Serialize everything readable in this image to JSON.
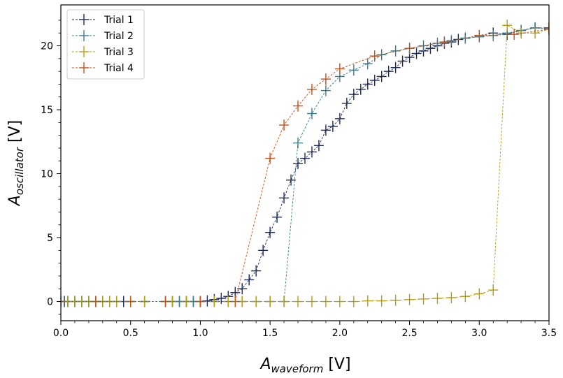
{
  "chart_data": {
    "type": "line",
    "title": "",
    "xlabel": {
      "main": "A",
      "sub": "waveform",
      "unit": " [V]"
    },
    "ylabel": {
      "main": "A",
      "sub": "oscillator",
      "unit": " [V]"
    },
    "xlim": [
      0.0,
      3.5
    ],
    "ylim": [
      -1.5,
      23.2
    ],
    "xticks": [
      0.0,
      0.5,
      1.0,
      1.5,
      2.0,
      2.5,
      3.0,
      3.5
    ],
    "xtick_labels": [
      "0.0",
      "0.5",
      "1.0",
      "1.5",
      "2.0",
      "2.5",
      "3.0",
      "3.5"
    ],
    "yticks": [
      0,
      5,
      10,
      15,
      20
    ],
    "ytick_labels": [
      "0",
      "5",
      "10",
      "15",
      "20"
    ],
    "grid": false,
    "legend_position": "top-left",
    "series": [
      {
        "name": "Trial 1",
        "color": "#1f2a55",
        "x": [
          0.0,
          0.025,
          0.05,
          0.1,
          0.15,
          0.2,
          0.25,
          0.3,
          0.35,
          0.4,
          0.45,
          0.5,
          0.6,
          0.75,
          0.8,
          0.85,
          0.9,
          0.95,
          1.0,
          1.05,
          1.1,
          1.15,
          1.2,
          1.25,
          1.3,
          1.35,
          1.4,
          1.45,
          1.5,
          1.55,
          1.6,
          1.65,
          1.7,
          1.75,
          1.8,
          1.85,
          1.9,
          1.95,
          2.0,
          2.05,
          2.1,
          2.15,
          2.2,
          2.25,
          2.3,
          2.35,
          2.4,
          2.45,
          2.5,
          2.55,
          2.6,
          2.65,
          2.7,
          2.75,
          2.8,
          2.85,
          2.9,
          3.0,
          3.1,
          3.2,
          3.3,
          3.4,
          3.5
        ],
        "y": [
          0,
          0,
          0,
          0,
          0,
          0,
          0,
          0,
          0,
          0,
          0,
          0,
          0,
          0,
          0,
          0,
          0,
          0,
          0,
          0.05,
          0.15,
          0.25,
          0.4,
          0.7,
          1.0,
          1.7,
          2.4,
          4.0,
          5.4,
          6.6,
          8.1,
          9.5,
          10.8,
          11.2,
          11.7,
          12.2,
          13.4,
          13.7,
          14.3,
          15.5,
          16.2,
          16.6,
          17.0,
          17.3,
          17.6,
          18.0,
          18.3,
          18.8,
          19.1,
          19.4,
          19.6,
          19.8,
          20.0,
          20.2,
          20.3,
          20.5,
          20.6,
          20.8,
          21.0,
          20.9,
          21.2,
          21.4,
          21.4
        ]
      },
      {
        "name": "Trial 2",
        "color": "#3a7d8c",
        "x": [
          0.0,
          0.05,
          0.1,
          0.15,
          0.2,
          0.25,
          0.3,
          0.35,
          0.4,
          0.5,
          0.6,
          0.75,
          0.8,
          0.85,
          0.9,
          0.95,
          1.0,
          1.1,
          1.2,
          1.3,
          1.4,
          1.5,
          1.6,
          1.7,
          1.8,
          1.9,
          2.0,
          2.1,
          2.2,
          2.3,
          2.4,
          2.5,
          2.6,
          2.7,
          2.8,
          2.9,
          3.0,
          3.1,
          3.2,
          3.3,
          3.4,
          3.5
        ],
        "y": [
          0,
          0,
          0,
          0,
          0,
          0,
          0,
          0,
          0,
          0,
          0,
          0,
          0,
          0,
          0,
          0,
          0,
          0,
          0,
          0,
          0,
          0,
          0,
          12.4,
          14.7,
          16.5,
          17.6,
          18.1,
          18.6,
          19.3,
          19.6,
          19.8,
          20.0,
          20.2,
          20.4,
          20.6,
          20.7,
          20.8,
          21.0,
          21.2,
          21.4,
          21.3
        ]
      },
      {
        "name": "Trial 3",
        "color": "#b39f14",
        "x": [
          0.0,
          0.05,
          0.1,
          0.15,
          0.2,
          0.25,
          0.3,
          0.35,
          0.4,
          0.5,
          0.6,
          0.75,
          0.8,
          0.9,
          1.0,
          1.1,
          1.2,
          1.3,
          1.4,
          1.5,
          1.6,
          1.7,
          1.8,
          1.9,
          2.0,
          2.1,
          2.2,
          2.3,
          2.4,
          2.5,
          2.6,
          2.7,
          2.8,
          2.9,
          3.0,
          3.1,
          3.2,
          3.3,
          3.4,
          3.5
        ],
        "y": [
          0,
          0,
          0,
          0,
          0,
          0,
          0,
          0,
          0,
          0,
          0,
          0,
          0,
          0,
          0,
          0,
          0,
          0,
          0,
          0,
          0,
          0,
          0,
          0,
          0,
          0,
          0.05,
          0.05,
          0.1,
          0.15,
          0.2,
          0.25,
          0.3,
          0.4,
          0.6,
          0.9,
          21.6,
          21.0,
          21.0,
          21.3
        ]
      },
      {
        "name": "Trial 4",
        "color": "#c0521a",
        "x": [
          0.0,
          0.25,
          0.5,
          0.75,
          1.0,
          1.25,
          1.5,
          1.6,
          1.7,
          1.8,
          1.9,
          2.0,
          2.25,
          2.5,
          2.75,
          3.0,
          3.25,
          3.5
        ],
        "y": [
          0,
          0,
          0,
          0,
          0,
          0,
          11.2,
          13.8,
          15.3,
          16.6,
          17.4,
          18.2,
          19.2,
          19.8,
          20.3,
          20.8,
          20.9,
          21.3
        ]
      }
    ]
  }
}
